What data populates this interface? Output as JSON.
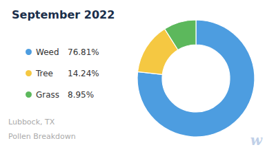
{
  "chart_data": {
    "type": "pie",
    "title": "September 2022",
    "subtitle": [
      "Lubbock, TX",
      "Pollen Breakdown"
    ],
    "annotations": [
      "w"
    ],
    "categories": [
      "Weed",
      "Tree",
      "Grass"
    ],
    "values": [
      76.81,
      14.24,
      8.95
    ],
    "value_labels": [
      "76.81%",
      "14.24%",
      "8.95%"
    ],
    "colors": [
      "#4d9de0",
      "#f5c842",
      "#5cb85c"
    ],
    "legend": "left"
  }
}
